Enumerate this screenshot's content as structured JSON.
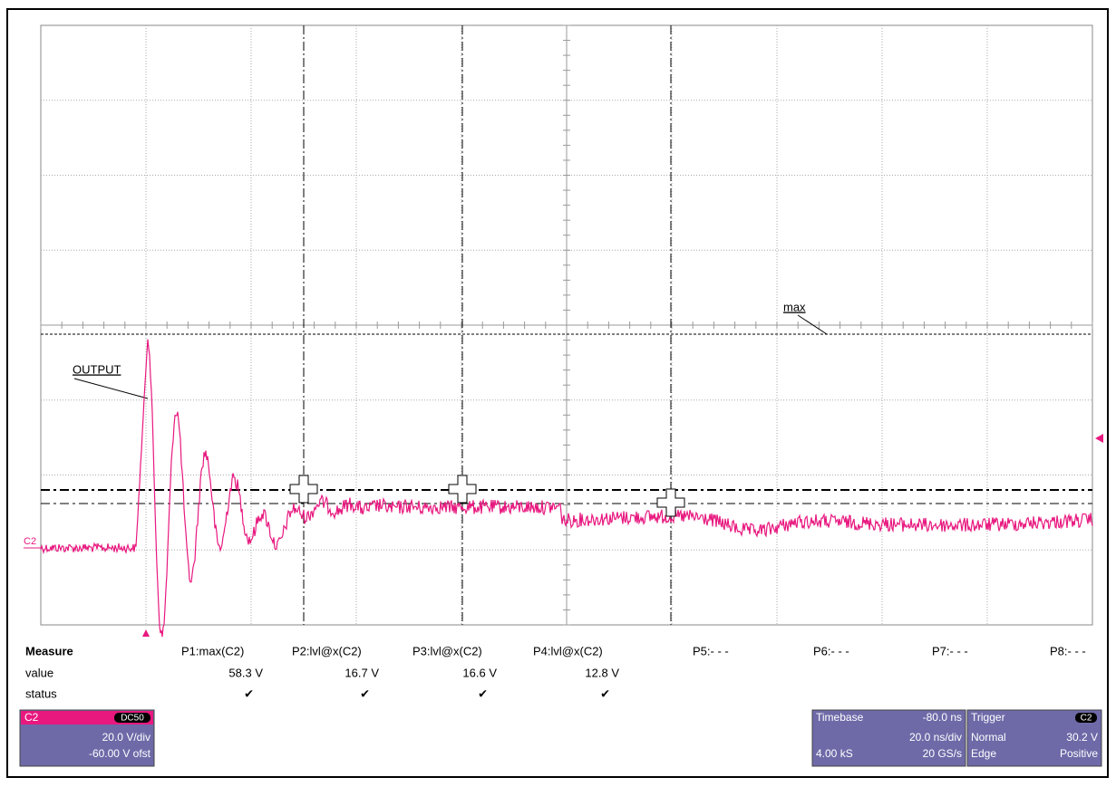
{
  "annotations": {
    "max": "max",
    "output": "OUTPUT",
    "channel": "C2"
  },
  "measure": {
    "title": "Measure",
    "row_labels": [
      "value",
      "status"
    ],
    "params": [
      {
        "name": "P1:max(C2)",
        "value": "58.3 V",
        "status": "✔"
      },
      {
        "name": "P2:lvl@x(C2)",
        "value": "16.7 V",
        "status": "✔"
      },
      {
        "name": "P3:lvl@x(C2)",
        "value": "16.6 V",
        "status": "✔"
      },
      {
        "name": "P4:lvl@x(C2)",
        "value": "12.8 V",
        "status": "✔"
      },
      {
        "name": "P5:- - -"
      },
      {
        "name": "P6:- - -"
      },
      {
        "name": "P7:- - -"
      },
      {
        "name": "P8:- - -"
      }
    ]
  },
  "channel_panel": {
    "name": "C2",
    "coupling": "DC50",
    "scale": "20.0 V/div",
    "offset": "-60.00 V ofst"
  },
  "timebase_panel": {
    "title": "Timebase",
    "delay": "-80.0 ns",
    "scale": "20.0 ns/div",
    "samples": "4.00 kS",
    "rate": "20 GS/s"
  },
  "trigger_panel": {
    "title": "Trigger",
    "source": "C2",
    "mode": "Normal",
    "level": "30.2 V",
    "type": "Edge",
    "slope": "Positive"
  }
}
